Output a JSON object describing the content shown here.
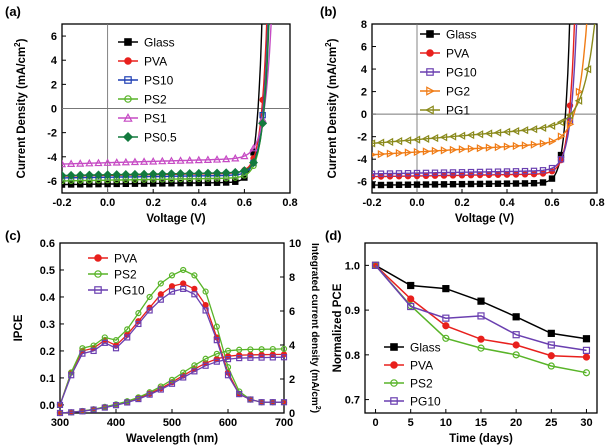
{
  "chart_data": [
    {
      "panel": "(a)",
      "type": "line",
      "xlabel": "Voltage (V)",
      "ylabel": "Current Density (mA/cm",
      "ylabel_sup": "2",
      "ylabel_close": ")",
      "xlim": [
        -0.2,
        0.8
      ],
      "ylim": [
        -7,
        7
      ],
      "xticks": [
        "-0.2",
        "0.0",
        "0.2",
        "0.4",
        "0.6",
        "0.8"
      ],
      "yticks": [
        "-6",
        "-4",
        "-2",
        "0",
        "2",
        "4",
        "6"
      ],
      "legend_position": "top-left",
      "zero_lines": true,
      "colors": {
        "Glass": "#000000",
        "PVA": "#e8201d",
        "PS10": "#1f3fb4",
        "PS2": "#58b428",
        "PS1": "#c64bc4",
        "PS0.5": "#137a3e"
      },
      "series": [
        {
          "name": "Glass",
          "marker": "square",
          "Jsc": -6.3,
          "slope": 0.22,
          "Voc": 0.62,
          "n": 0.022
        },
        {
          "name": "PVA",
          "marker": "circle",
          "Jsc": -5.6,
          "slope": 0.3,
          "Voc": 0.635,
          "n": 0.025
        },
        {
          "name": "PS10",
          "marker": "square-open",
          "Jsc": -5.75,
          "slope": 0.28,
          "Voc": 0.64,
          "n": 0.025
        },
        {
          "name": "PS2",
          "marker": "circle-open",
          "Jsc": -6.0,
          "slope": 0.3,
          "Voc": 0.64,
          "n": 0.026
        },
        {
          "name": "PS1",
          "marker": "triangle",
          "Jsc": -4.6,
          "slope": 0.55,
          "Voc": 0.645,
          "n": 0.03
        },
        {
          "name": "PS0.5",
          "marker": "diamond",
          "Jsc": -5.55,
          "slope": 0.3,
          "Voc": 0.645,
          "n": 0.025
        }
      ]
    },
    {
      "panel": "(b)",
      "type": "line",
      "xlabel": "Voltage (V)",
      "ylabel": "Current Density (mA/cm",
      "ylabel_sup": "2",
      "ylabel_close": ")",
      "xlim": [
        -0.2,
        0.8
      ],
      "ylim": [
        -7,
        8
      ],
      "xticks": [
        "-0.2",
        "0.0",
        "0.2",
        "0.4",
        "0.6",
        "0.8"
      ],
      "yticks": [
        "-6",
        "-4",
        "-2",
        "0",
        "2",
        "4",
        "6",
        "8"
      ],
      "legend_position": "top-left",
      "zero_lines": true,
      "colors": {
        "Glass": "#000000",
        "PVA": "#e8201d",
        "PG10": "#6a3fb0",
        "PG2": "#f07c16",
        "PG1": "#8a8a1c"
      },
      "series": [
        {
          "name": "Glass",
          "marker": "square",
          "Jsc": -6.3,
          "slope": 0.22,
          "Voc": 0.62,
          "n": 0.022
        },
        {
          "name": "PVA",
          "marker": "circle",
          "Jsc": -5.55,
          "slope": 0.3,
          "Voc": 0.635,
          "n": 0.025
        },
        {
          "name": "PG10",
          "marker": "square-open",
          "Jsc": -5.3,
          "slope": 0.35,
          "Voc": 0.64,
          "n": 0.027
        },
        {
          "name": "PG2",
          "marker": "triangle-right",
          "Jsc": -3.6,
          "slope": 1.2,
          "Voc": 0.66,
          "n": 0.04
        },
        {
          "name": "PG1",
          "marker": "triangle-left",
          "Jsc": -2.6,
          "slope": 1.7,
          "Voc": 0.68,
          "n": 0.05
        }
      ]
    },
    {
      "panel": "(c)",
      "type": "line",
      "xlabel": "Wavelength (nm)",
      "ylabel": "IPCE",
      "ylabel_right": "Integrated current density (mA/cm",
      "ylabel_right_sup": "2",
      "ylabel_right_close": ")",
      "xlim": [
        300,
        700
      ],
      "ylim": [
        -0.03,
        0.6
      ],
      "ylim_right": [
        0,
        10
      ],
      "xticks": [
        "300",
        "400",
        "500",
        "600",
        "700"
      ],
      "yticks": [
        "0.0",
        "0.1",
        "0.2",
        "0.3",
        "0.4",
        "0.5",
        "0.6"
      ],
      "yticks_right": [
        "0",
        "2",
        "4",
        "6",
        "8",
        "10"
      ],
      "legend_position": "top-left",
      "colors": {
        "PVA": "#e8201d",
        "PS2": "#58b428",
        "PG10": "#6a3fb0"
      },
      "wavelengths": [
        300,
        320,
        340,
        360,
        380,
        400,
        420,
        440,
        460,
        480,
        500,
        520,
        540,
        560,
        580,
        600,
        620,
        640,
        660,
        680,
        700
      ],
      "series": [
        {
          "name": "PVA",
          "marker": "circle",
          "ipce": [
            0.0,
            0.12,
            0.2,
            0.21,
            0.24,
            0.22,
            0.26,
            0.31,
            0.36,
            0.41,
            0.44,
            0.45,
            0.43,
            0.37,
            0.25,
            0.12,
            0.04,
            0.02,
            0.01,
            0.01,
            0.01
          ],
          "jint": [
            0.0,
            0.04,
            0.11,
            0.21,
            0.34,
            0.49,
            0.66,
            0.87,
            1.14,
            1.45,
            1.81,
            2.2,
            2.58,
            2.93,
            3.18,
            3.34,
            3.4,
            3.42,
            3.43,
            3.44,
            3.45
          ]
        },
        {
          "name": "PS2",
          "marker": "circle-open",
          "ipce": [
            0.0,
            0.12,
            0.21,
            0.22,
            0.25,
            0.24,
            0.28,
            0.34,
            0.4,
            0.45,
            0.48,
            0.5,
            0.48,
            0.42,
            0.29,
            0.14,
            0.05,
            0.02,
            0.01,
            0.01,
            0.01
          ],
          "jint": [
            0.0,
            0.04,
            0.12,
            0.22,
            0.36,
            0.51,
            0.69,
            0.92,
            1.22,
            1.56,
            1.95,
            2.38,
            2.8,
            3.19,
            3.48,
            3.66,
            3.72,
            3.74,
            3.75,
            3.76,
            3.77
          ]
        },
        {
          "name": "PG10",
          "marker": "square-open",
          "ipce": [
            0.0,
            0.11,
            0.19,
            0.2,
            0.23,
            0.21,
            0.25,
            0.3,
            0.35,
            0.39,
            0.42,
            0.43,
            0.41,
            0.35,
            0.24,
            0.11,
            0.04,
            0.02,
            0.01,
            0.01,
            0.01
          ],
          "jint": [
            0.0,
            0.04,
            0.1,
            0.2,
            0.32,
            0.46,
            0.62,
            0.82,
            1.08,
            1.38,
            1.72,
            2.09,
            2.45,
            2.78,
            3.02,
            3.17,
            3.23,
            3.25,
            3.26,
            3.27,
            3.28
          ]
        }
      ]
    },
    {
      "panel": "(d)",
      "type": "line",
      "xlabel": "Time (days)",
      "ylabel": "Normalized PCE",
      "xlim": [
        -1.5,
        31.5
      ],
      "ylim": [
        0.67,
        1.05
      ],
      "xticks": [
        "0",
        "5",
        "10",
        "15",
        "20",
        "25",
        "30"
      ],
      "yticks": [
        "0.7",
        "0.8",
        "0.9",
        "1.0"
      ],
      "legend_position": "bottom-left",
      "colors": {
        "Glass": "#000000",
        "PVA": "#e8201d",
        "PS2": "#58b428",
        "PG10": "#6a3fb0"
      },
      "x": [
        0,
        5,
        10,
        15,
        20,
        25,
        30
      ],
      "series": [
        {
          "name": "Glass",
          "marker": "square",
          "values": [
            1.0,
            0.955,
            0.948,
            0.92,
            0.885,
            0.848,
            0.836
          ]
        },
        {
          "name": "PVA",
          "marker": "circle",
          "values": [
            1.0,
            0.925,
            0.865,
            0.835,
            0.822,
            0.798,
            0.795
          ]
        },
        {
          "name": "PS2",
          "marker": "circle-open",
          "values": [
            1.0,
            0.91,
            0.837,
            0.815,
            0.8,
            0.775,
            0.76
          ]
        },
        {
          "name": "PG10",
          "marker": "square-open",
          "values": [
            1.0,
            0.908,
            0.882,
            0.887,
            0.845,
            0.822,
            0.81
          ]
        }
      ]
    }
  ]
}
